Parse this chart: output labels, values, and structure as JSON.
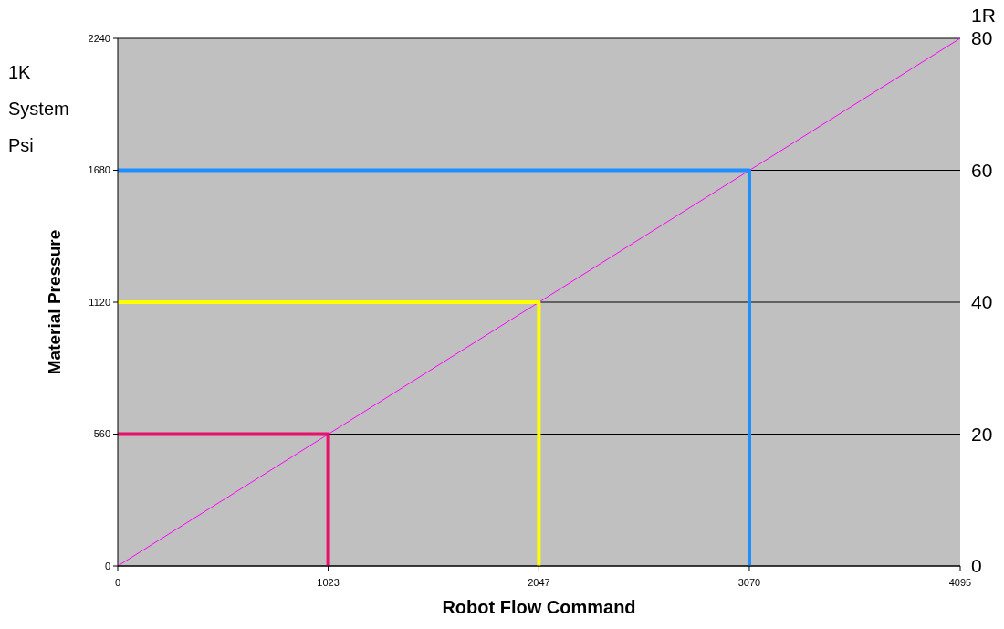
{
  "chart_data": {
    "type": "line",
    "xlabel": "Robot Flow Command",
    "ylabel": "Material Pressure",
    "y2label": "1R",
    "annotations": [
      "1K System Psi"
    ],
    "xlim": [
      0,
      4095
    ],
    "xticks": [
      0,
      1023,
      2047,
      3070,
      4095
    ],
    "ylim": [
      0,
      2240
    ],
    "yticks": [
      0,
      560,
      1120,
      1680,
      2240
    ],
    "y2lim": [
      0,
      80
    ],
    "y2ticks": [
      0,
      20,
      40,
      60,
      80
    ],
    "grid": "y",
    "marker": "none",
    "line_style": "solid",
    "series": [
      {
        "color": "#ff00ff",
        "x": [
          0,
          4095
        ],
        "values": [
          0,
          2240
        ]
      },
      {
        "color": "#e8106a",
        "x": [
          0,
          1023,
          1023
        ],
        "values": [
          560,
          560,
          0
        ]
      },
      {
        "color": "#ffff00",
        "x": [
          0,
          2047,
          2047
        ],
        "values": [
          1120,
          1120,
          0
        ]
      },
      {
        "color": "#1e8fff",
        "x": [
          0,
          3070,
          3070
        ],
        "values": [
          1680,
          1680,
          0
        ]
      }
    ]
  }
}
